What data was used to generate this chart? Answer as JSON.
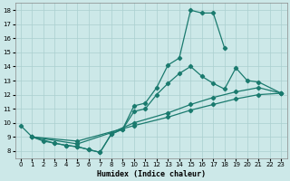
{
  "xlabel": "Humidex (Indice chaleur)",
  "bg_color": "#cce8e8",
  "grid_color": "#aacfcf",
  "line_color": "#1a7a6e",
  "xlim": [
    -0.5,
    23.5
  ],
  "ylim": [
    7.5,
    18.5
  ],
  "xticks": [
    0,
    1,
    2,
    3,
    4,
    5,
    6,
    7,
    8,
    9,
    10,
    11,
    12,
    13,
    14,
    15,
    16,
    17,
    18,
    19,
    20,
    21,
    22,
    23
  ],
  "yticks": [
    8,
    9,
    10,
    11,
    12,
    13,
    14,
    15,
    16,
    17,
    18
  ],
  "lines": [
    {
      "x": [
        0,
        1,
        2,
        3,
        4,
        5,
        6,
        7,
        8,
        9,
        10,
        11,
        12,
        13,
        14,
        15,
        16,
        17,
        18
      ],
      "y": [
        9.8,
        9.0,
        8.7,
        8.55,
        8.4,
        8.3,
        8.1,
        7.9,
        9.2,
        9.55,
        11.2,
        11.4,
        12.5,
        14.1,
        14.6,
        18.0,
        17.8,
        17.8,
        15.3
      ]
    },
    {
      "x": [
        1,
        3,
        4,
        5,
        6,
        7,
        8,
        9,
        10,
        11,
        12,
        13,
        14,
        15,
        16,
        17,
        18,
        19,
        20,
        21,
        23
      ],
      "y": [
        9.0,
        8.55,
        8.4,
        8.3,
        8.1,
        7.9,
        9.2,
        9.55,
        10.8,
        11.0,
        12.0,
        12.8,
        13.5,
        14.0,
        13.3,
        12.8,
        12.4,
        13.9,
        13.0,
        12.9,
        12.1
      ]
    },
    {
      "x": [
        1,
        5,
        8,
        10,
        13,
        15,
        17,
        19,
        21,
        23
      ],
      "y": [
        9.0,
        8.5,
        9.3,
        10.0,
        10.7,
        11.3,
        11.8,
        12.2,
        12.5,
        12.1
      ]
    },
    {
      "x": [
        1,
        5,
        10,
        13,
        15,
        17,
        19,
        21,
        23
      ],
      "y": [
        9.0,
        8.7,
        9.8,
        10.4,
        10.9,
        11.3,
        11.7,
        12.0,
        12.1
      ]
    }
  ]
}
